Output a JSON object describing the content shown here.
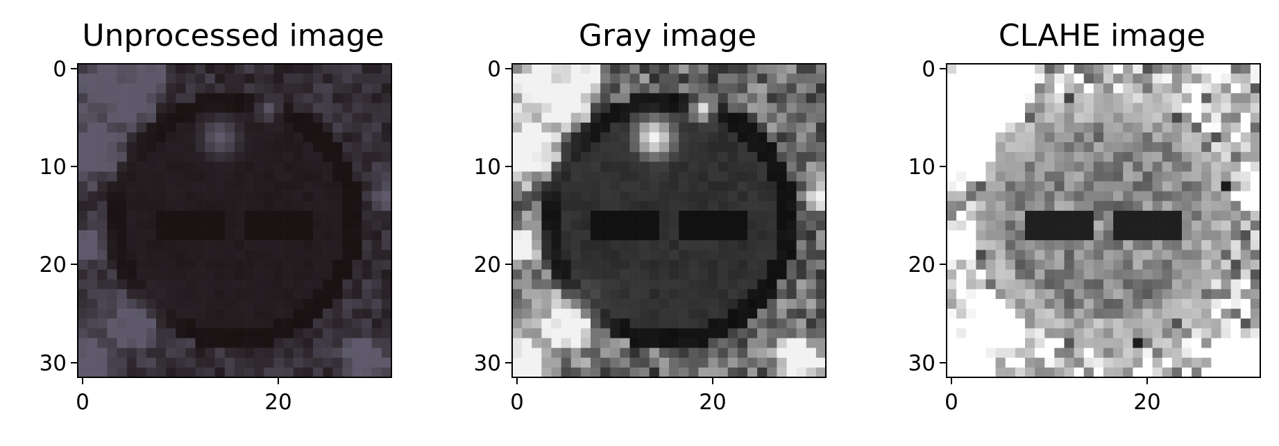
{
  "panels": [
    {
      "title": "Unprocessed image",
      "y_ticks": [
        "0",
        "10",
        "20",
        "30"
      ],
      "x_ticks": [
        "0",
        "20"
      ],
      "shows": "dark RGB photo of a circular road sign",
      "mode": "color"
    },
    {
      "title": "Gray image",
      "y_ticks": [
        "0",
        "10",
        "20",
        "30"
      ],
      "x_ticks": [
        "0",
        "20"
      ],
      "shows": "grayscale version of the sign",
      "mode": "gray"
    },
    {
      "title": "CLAHE image",
      "y_ticks": [
        "0",
        "10",
        "20",
        "30"
      ],
      "x_ticks": [
        "0",
        "20"
      ],
      "shows": "contrast-enhanced (CLAHE) grayscale sign",
      "mode": "clahe"
    }
  ],
  "colors": {
    "axis": "#000000",
    "color_base": "#1a1212",
    "gray_base": "#0a0a0a"
  }
}
